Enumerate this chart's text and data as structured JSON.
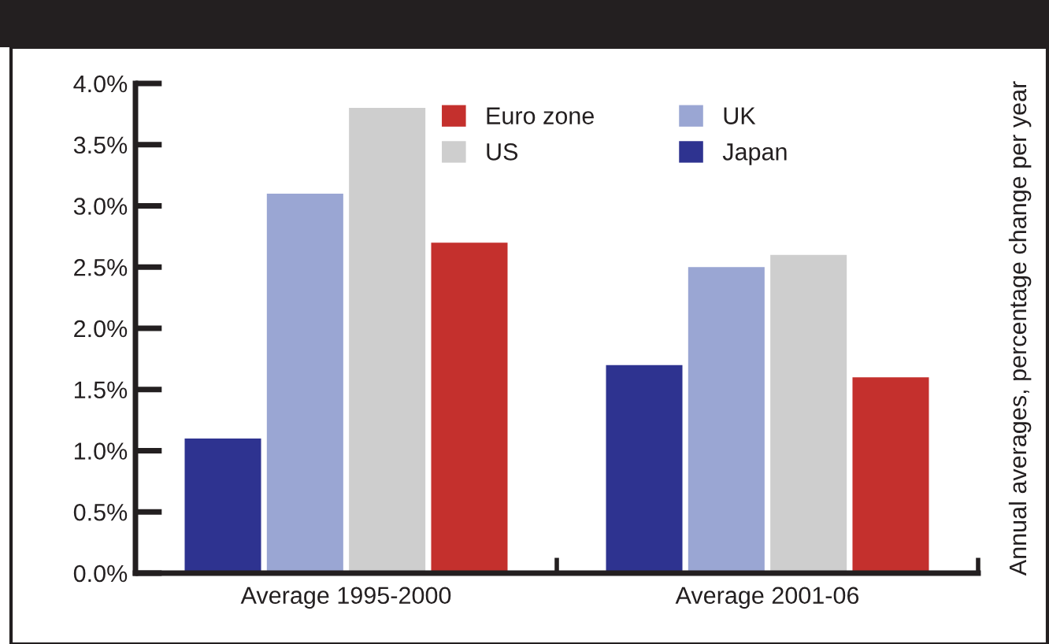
{
  "chart_data": {
    "type": "bar",
    "categories": [
      "Average 1995-2000",
      "Average 2001-06"
    ],
    "series": [
      {
        "name": "Japan",
        "color": "#2e3390",
        "values": [
          1.1,
          1.7
        ]
      },
      {
        "name": "UK",
        "color": "#9aa6d3",
        "values": [
          3.1,
          2.5
        ]
      },
      {
        "name": "US",
        "color": "#cecece",
        "values": [
          3.8,
          2.6
        ]
      },
      {
        "name": "Euro zone",
        "color": "#c4302d",
        "values": [
          2.7,
          1.6
        ]
      }
    ],
    "ylabel": "Annual averages, percentage change per year",
    "ylim": [
      0,
      4
    ],
    "yticks": [
      {
        "value": 0,
        "label": "0.0%"
      },
      {
        "value": 0.5,
        "label": "0.5%"
      },
      {
        "value": 1,
        "label": "1.0%"
      },
      {
        "value": 1.5,
        "label": "1.5%"
      },
      {
        "value": 2,
        "label": "2.0%"
      },
      {
        "value": 2.5,
        "label": "2.5%"
      },
      {
        "value": 3,
        "label": "3.0%"
      },
      {
        "value": 3.5,
        "label": "3.5%"
      },
      {
        "value": 4,
        "label": "4.0%"
      }
    ],
    "grid": false,
    "legend": "top right"
  }
}
